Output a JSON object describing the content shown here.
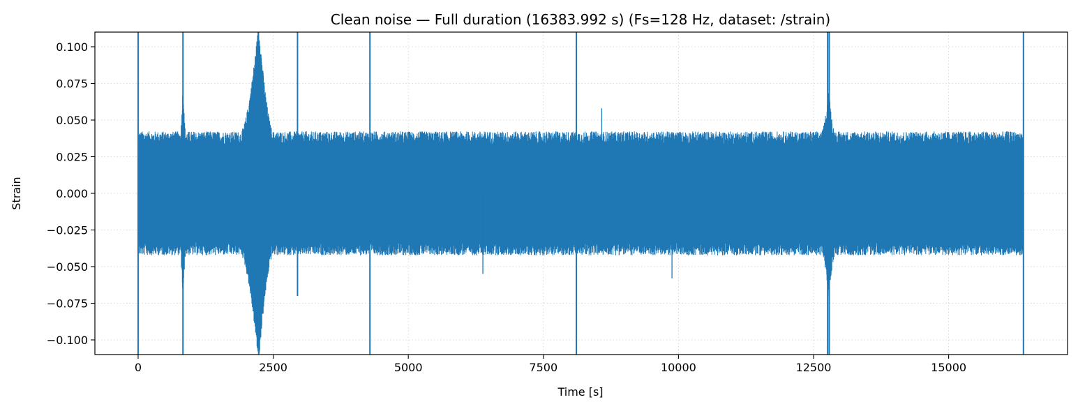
{
  "chart_data": {
    "type": "line",
    "title": "Clean noise — Full duration (16383.992 s)  (Fs=128 Hz, dataset: /strain)",
    "xlabel": "Time [s]",
    "ylabel": "Strain",
    "xlim": [
      -800,
      17200
    ],
    "ylim": [
      -0.11,
      0.11
    ],
    "grid": true,
    "legend": "none",
    "series_color": "#1f77b4",
    "xticks": [
      0,
      2500,
      5000,
      7500,
      10000,
      12500,
      15000
    ],
    "xtick_labels": [
      "0",
      "2500",
      "5000",
      "7500",
      "10000",
      "12500",
      "15000"
    ],
    "yticks": [
      -0.1,
      -0.075,
      -0.05,
      -0.025,
      0.0,
      0.025,
      0.05,
      0.075,
      0.1
    ],
    "ytick_labels": [
      "−0.100",
      "−0.075",
      "−0.050",
      "−0.025",
      "0.000",
      "0.025",
      "0.050",
      "0.075",
      "0.100"
    ],
    "series": [
      {
        "data_start": 0,
        "data_end": 16383.992,
        "noise_envelope": 0.036,
        "glitches": [
          {
            "t": 0,
            "ymin": -0.11,
            "ymax": 0.11
          },
          {
            "t": 830,
            "ymin": -0.11,
            "ymax": 0.11
          },
          {
            "t": 2950,
            "ymin": -0.07,
            "ymax": 0.11
          },
          {
            "t": 4290,
            "ymin": -0.11,
            "ymax": 0.11
          },
          {
            "t": 8110,
            "ymin": -0.11,
            "ymax": 0.11
          },
          {
            "t": 12760,
            "ymin": -0.11,
            "ymax": 0.11
          },
          {
            "t": 12790,
            "ymin": -0.11,
            "ymax": 0.11
          },
          {
            "t": 16383.992,
            "ymin": -0.11,
            "ymax": 0.11
          }
        ],
        "bursts": [
          {
            "t_start": 1900,
            "t_end": 2500,
            "peak_t": 2230,
            "peak_amplitude": 0.11
          },
          {
            "t_start": 780,
            "t_end": 880,
            "peak_t": 830,
            "peak_amplitude": 0.07
          },
          {
            "t_start": 12650,
            "t_end": 12900,
            "peak_t": 12780,
            "peak_amplitude": 0.065
          }
        ],
        "spikes": [
          {
            "t": 8580,
            "y": 0.058
          },
          {
            "t": 9880,
            "y": -0.058
          },
          {
            "t": 6380,
            "y": -0.055
          },
          {
            "t": 2950,
            "y": -0.07
          }
        ]
      }
    ]
  }
}
